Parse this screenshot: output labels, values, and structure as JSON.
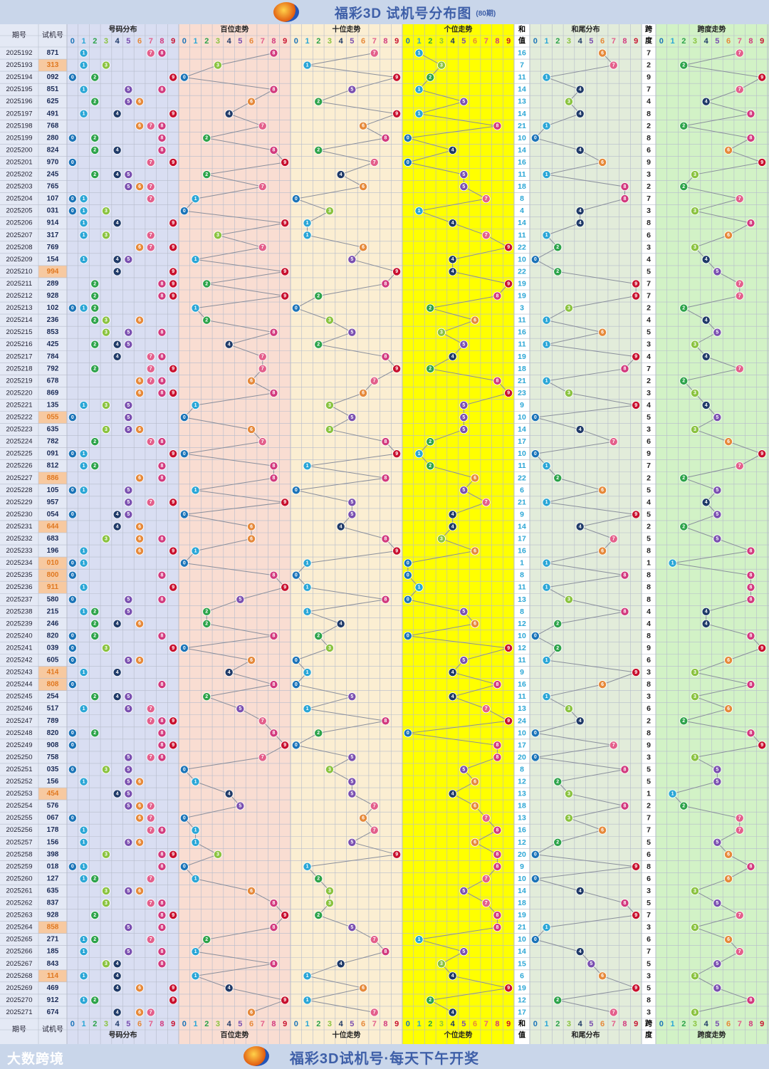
{
  "header": {
    "title": "福彩3D 试机号分布图",
    "subtitle": "(80期)"
  },
  "footer": {
    "brand": "大数跨境",
    "slogan": "福彩3D试机号·每天下午开奖"
  },
  "columns": {
    "period": "期号",
    "number": "试机号",
    "dist": "号码分布",
    "hundreds": "百位走势",
    "tens": "十位走势",
    "units": "个位走势",
    "sum_label": [
      "和",
      "值"
    ],
    "sumtail": "和尾分布",
    "span_label": [
      "跨",
      "度"
    ],
    "spantrend": "跨度走势",
    "digits": [
      "0",
      "1",
      "2",
      "3",
      "4",
      "5",
      "6",
      "7",
      "8",
      "9"
    ]
  },
  "colors": {
    "digit_colors": [
      "#1b74b8",
      "#2aa6d6",
      "#2ca34a",
      "#8ac33f",
      "#1f3a68",
      "#7a4fb0",
      "#e6893a",
      "#e35f8b",
      "#d23a7e",
      "#c8102e"
    ],
    "bg_dist": "#d9def2",
    "bg_hundreds": "#f9ddd2",
    "bg_tens": "#fbeed2",
    "bg_units": "#ffff00",
    "bg_sumtail": "#e2ecda",
    "bg_span": "#d2f2c6",
    "highlight_number": "#f7c9a0"
  },
  "chart_data": {
    "type": "table",
    "rows": [
      {
        "period": "2025192",
        "number": "871",
        "sum": "16",
        "span": "7"
      },
      {
        "period": "2025193",
        "number": "313",
        "sum": "7",
        "span": "2"
      },
      {
        "period": "2025194",
        "number": "092",
        "sum": "11",
        "span": "9"
      },
      {
        "period": "2025195",
        "number": "851",
        "sum": "14",
        "span": "7"
      },
      {
        "period": "2025196",
        "number": "625",
        "sum": "13",
        "span": "4"
      },
      {
        "period": "2025197",
        "number": "491",
        "sum": "14",
        "span": "8"
      },
      {
        "period": "2025198",
        "number": "768",
        "sum": "21",
        "span": "2"
      },
      {
        "period": "2025199",
        "number": "280",
        "sum": "10",
        "span": "8"
      },
      {
        "period": "2025200",
        "number": "824",
        "sum": "14",
        "span": "6"
      },
      {
        "period": "2025201",
        "number": "970",
        "sum": "16",
        "span": "9"
      },
      {
        "period": "2025202",
        "number": "245",
        "sum": "11",
        "span": "3"
      },
      {
        "period": "2025203",
        "number": "765",
        "sum": "18",
        "span": "2"
      },
      {
        "period": "2025204",
        "number": "107",
        "sum": "8",
        "span": "7"
      },
      {
        "period": "2025205",
        "number": "031",
        "sum": "4",
        "span": "3"
      },
      {
        "period": "2025206",
        "number": "914",
        "sum": "14",
        "span": "8"
      },
      {
        "period": "2025207",
        "number": "317",
        "sum": "11",
        "span": "6"
      },
      {
        "period": "2025208",
        "number": "769",
        "sum": "22",
        "span": "3"
      },
      {
        "period": "2025209",
        "number": "154",
        "sum": "10",
        "span": "4"
      },
      {
        "period": "2025210",
        "number": "994",
        "sum": "22",
        "span": "5"
      },
      {
        "period": "2025211",
        "number": "289",
        "sum": "19",
        "span": "7"
      },
      {
        "period": "2025212",
        "number": "928",
        "sum": "19",
        "span": "7"
      },
      {
        "period": "2025213",
        "number": "102",
        "sum": "3",
        "span": "2"
      },
      {
        "period": "2025214",
        "number": "236",
        "sum": "11",
        "span": "4"
      },
      {
        "period": "2025215",
        "number": "853",
        "sum": "16",
        "span": "5"
      },
      {
        "period": "2025216",
        "number": "425",
        "sum": "11",
        "span": "3"
      },
      {
        "period": "2025217",
        "number": "784",
        "sum": "19",
        "span": "4"
      },
      {
        "period": "2025218",
        "number": "792",
        "sum": "18",
        "span": "7"
      },
      {
        "period": "2025219",
        "number": "678",
        "sum": "21",
        "span": "2"
      },
      {
        "period": "2025220",
        "number": "869",
        "sum": "23",
        "span": "3"
      },
      {
        "period": "2025221",
        "number": "135",
        "sum": "9",
        "span": "4"
      },
      {
        "period": "2025222",
        "number": "055",
        "sum": "10",
        "span": "5"
      },
      {
        "period": "2025223",
        "number": "635",
        "sum": "14",
        "span": "3"
      },
      {
        "period": "2025224",
        "number": "782",
        "sum": "17",
        "span": "6"
      },
      {
        "period": "2025225",
        "number": "091",
        "sum": "10",
        "span": "9"
      },
      {
        "period": "2025226",
        "number": "812",
        "sum": "11",
        "span": "7"
      },
      {
        "period": "2025227",
        "number": "886",
        "sum": "22",
        "span": "2"
      },
      {
        "period": "2025228",
        "number": "105",
        "sum": "6",
        "span": "5"
      },
      {
        "period": "2025229",
        "number": "957",
        "sum": "21",
        "span": "4"
      },
      {
        "period": "2025230",
        "number": "054",
        "sum": "9",
        "span": "5"
      },
      {
        "period": "2025231",
        "number": "644",
        "sum": "14",
        "span": "2"
      },
      {
        "period": "2025232",
        "number": "683",
        "sum": "17",
        "span": "5"
      },
      {
        "period": "2025233",
        "number": "196",
        "sum": "16",
        "span": "8"
      },
      {
        "period": "2025234",
        "number": "010",
        "sum": "1",
        "span": "1"
      },
      {
        "period": "2025235",
        "number": "800",
        "sum": "8",
        "span": "8"
      },
      {
        "period": "2025236",
        "number": "911",
        "sum": "11",
        "span": "8"
      },
      {
        "period": "2025237",
        "number": "580",
        "sum": "13",
        "span": "8"
      },
      {
        "period": "2025238",
        "number": "215",
        "sum": "8",
        "span": "4"
      },
      {
        "period": "2025239",
        "number": "246",
        "sum": "12",
        "span": "4"
      },
      {
        "period": "2025240",
        "number": "820",
        "sum": "10",
        "span": "8"
      },
      {
        "period": "2025241",
        "number": "039",
        "sum": "12",
        "span": "9"
      },
      {
        "period": "2025242",
        "number": "605",
        "sum": "11",
        "span": "6"
      },
      {
        "period": "2025243",
        "number": "414",
        "sum": "9",
        "span": "3"
      },
      {
        "period": "2025244",
        "number": "808",
        "sum": "16",
        "span": "8"
      },
      {
        "period": "2025245",
        "number": "254",
        "sum": "11",
        "span": "3"
      },
      {
        "period": "2025246",
        "number": "517",
        "sum": "13",
        "span": "6"
      },
      {
        "period": "2025247",
        "number": "789",
        "sum": "24",
        "span": "2"
      },
      {
        "period": "2025248",
        "number": "820",
        "sum": "10",
        "span": "8"
      },
      {
        "period": "2025249",
        "number": "908",
        "sum": "17",
        "span": "9"
      },
      {
        "period": "2025250",
        "number": "758",
        "sum": "20",
        "span": "3"
      },
      {
        "period": "2025251",
        "number": "035",
        "sum": "8",
        "span": "5"
      },
      {
        "period": "2025252",
        "number": "156",
        "sum": "12",
        "span": "5"
      },
      {
        "period": "2025253",
        "number": "454",
        "sum": "13",
        "span": "1"
      },
      {
        "period": "2025254",
        "number": "576",
        "sum": "18",
        "span": "2"
      },
      {
        "period": "2025255",
        "number": "067",
        "sum": "13",
        "span": "7"
      },
      {
        "period": "2025256",
        "number": "178",
        "sum": "16",
        "span": "7"
      },
      {
        "period": "2025257",
        "number": "156",
        "sum": "12",
        "span": "5"
      },
      {
        "period": "2025258",
        "number": "398",
        "sum": "20",
        "span": "6"
      },
      {
        "period": "2025259",
        "number": "018",
        "sum": "9",
        "span": "8"
      },
      {
        "period": "2025260",
        "number": "127",
        "sum": "10",
        "span": "6"
      },
      {
        "period": "2025261",
        "number": "635",
        "sum": "14",
        "span": "3"
      },
      {
        "period": "2025262",
        "number": "837",
        "sum": "18",
        "span": "5"
      },
      {
        "period": "2025263",
        "number": "928",
        "sum": "19",
        "span": "7"
      },
      {
        "period": "2025264",
        "number": "858",
        "sum": "21",
        "span": "3"
      },
      {
        "period": "2025265",
        "number": "271",
        "sum": "10",
        "span": "6"
      },
      {
        "period": "2025266",
        "number": "185",
        "sum": "14",
        "span": "7"
      },
      {
        "period": "2025267",
        "number": "843",
        "sum": "15",
        "span": "5"
      },
      {
        "period": "2025268",
        "number": "114",
        "sum": "6",
        "span": "3"
      },
      {
        "period": "2025269",
        "number": "469",
        "sum": "19",
        "span": "5"
      },
      {
        "period": "2025270",
        "number": "912",
        "sum": "12",
        "span": "8"
      },
      {
        "period": "2025271",
        "number": "674",
        "sum": "17",
        "span": "3"
      }
    ]
  }
}
